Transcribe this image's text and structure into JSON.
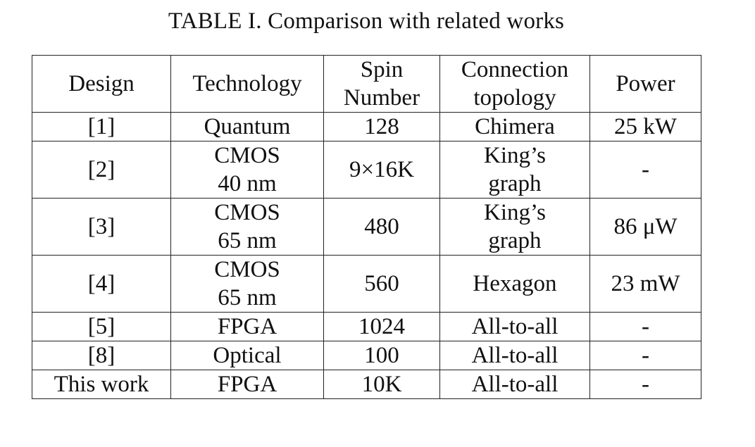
{
  "caption": "TABLE I. Comparison with related works",
  "table": {
    "headers": {
      "design": "Design",
      "technology": "Technology",
      "spin_number": [
        "Spin",
        "Number"
      ],
      "connection_topology": [
        "Connection",
        "topology"
      ],
      "power": "Power"
    },
    "rows": [
      {
        "design": "[1]",
        "technology": [
          "Quantum"
        ],
        "spin_number": "128",
        "topology": [
          "Chimera"
        ],
        "power": "25 kW"
      },
      {
        "design": "[2]",
        "technology": [
          "CMOS",
          "40 nm"
        ],
        "spin_number": "9×16K",
        "topology": [
          "King’s",
          "graph"
        ],
        "power": "-"
      },
      {
        "design": "[3]",
        "technology": [
          "CMOS",
          "65 nm"
        ],
        "spin_number": "480",
        "topology": [
          "King’s",
          "graph"
        ],
        "power": "86 μW"
      },
      {
        "design": "[4]",
        "technology": [
          "CMOS",
          "65 nm"
        ],
        "spin_number": "560",
        "topology": [
          "Hexagon"
        ],
        "power": "23 mW"
      },
      {
        "design": "[5]",
        "technology": [
          "FPGA"
        ],
        "spin_number": "1024",
        "topology": [
          "All-to-all"
        ],
        "power": "-"
      },
      {
        "design": "[8]",
        "technology": [
          "Optical"
        ],
        "spin_number": "100",
        "topology": [
          "All-to-all"
        ],
        "power": "-"
      },
      {
        "design": "This work",
        "technology": [
          "FPGA"
        ],
        "spin_number": "10K",
        "topology": [
          "All-to-all"
        ],
        "power": "-"
      }
    ]
  }
}
